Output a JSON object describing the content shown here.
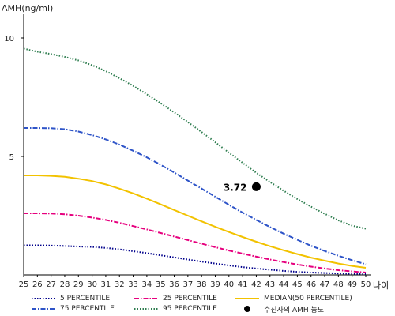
{
  "chart_data": {
    "type": "line",
    "ylabel": "AMH(ng/ml)",
    "xlabel": "나이",
    "x": [
      25,
      26,
      27,
      28,
      29,
      30,
      31,
      32,
      33,
      34,
      35,
      36,
      37,
      38,
      39,
      40,
      41,
      42,
      43,
      44,
      45,
      46,
      47,
      48,
      49,
      50
    ],
    "ylim": [
      0,
      11
    ],
    "xlim": [
      25,
      50
    ],
    "yticks": [
      5,
      10
    ],
    "grid": false,
    "legend_placement": "bottom",
    "series": [
      {
        "name": "5 PERCENTILE",
        "color": "#00008b",
        "style": "dotted",
        "values": [
          1.25,
          1.25,
          1.24,
          1.22,
          1.2,
          1.18,
          1.14,
          1.08,
          1.0,
          0.92,
          0.83,
          0.74,
          0.65,
          0.56,
          0.48,
          0.4,
          0.33,
          0.27,
          0.22,
          0.17,
          0.13,
          0.1,
          0.08,
          0.06,
          0.05,
          0.04
        ]
      },
      {
        "name": "25 PERCENTILE",
        "color": "#e6007e",
        "style": "dashdot",
        "values": [
          2.6,
          2.6,
          2.59,
          2.56,
          2.5,
          2.42,
          2.32,
          2.2,
          2.06,
          1.92,
          1.77,
          1.62,
          1.47,
          1.32,
          1.17,
          1.03,
          0.9,
          0.77,
          0.65,
          0.54,
          0.44,
          0.35,
          0.27,
          0.2,
          0.15,
          0.1
        ]
      },
      {
        "name": "MEDIAN(50 PERCENTILE)",
        "color": "#f2c200",
        "style": "solid",
        "values": [
          4.2,
          4.2,
          4.18,
          4.14,
          4.06,
          3.96,
          3.82,
          3.64,
          3.44,
          3.22,
          2.98,
          2.74,
          2.5,
          2.26,
          2.03,
          1.81,
          1.6,
          1.4,
          1.21,
          1.04,
          0.88,
          0.73,
          0.6,
          0.48,
          0.38,
          0.3
        ]
      },
      {
        "name": "75 PERCENTILE",
        "color": "#2e54c8",
        "style": "dashdot",
        "values": [
          6.2,
          6.2,
          6.19,
          6.15,
          6.05,
          5.9,
          5.72,
          5.5,
          5.24,
          4.96,
          4.65,
          4.32,
          3.98,
          3.64,
          3.3,
          2.96,
          2.63,
          2.32,
          2.02,
          1.74,
          1.48,
          1.23,
          1.01,
          0.81,
          0.62,
          0.45
        ]
      },
      {
        "name": "95 PERCENTILE",
        "color": "#2e7d4f",
        "style": "dotted",
        "values": [
          9.55,
          9.42,
          9.32,
          9.2,
          9.05,
          8.85,
          8.6,
          8.3,
          7.98,
          7.62,
          7.25,
          6.86,
          6.45,
          6.03,
          5.6,
          5.16,
          4.73,
          4.31,
          3.92,
          3.55,
          3.2,
          2.88,
          2.58,
          2.3,
          2.08,
          1.95
        ]
      }
    ],
    "points": [
      {
        "name": "수진자의 AMH 농도",
        "x": 42,
        "y": 3.72,
        "label": "3.72",
        "color": "#000000"
      }
    ],
    "xtick_labels": [
      "25",
      "26",
      "27",
      "28",
      "29",
      "30",
      "31",
      "32",
      "33",
      "34",
      "35",
      "36",
      "37",
      "38",
      "39",
      "40",
      "41",
      "42",
      "43",
      "44",
      "45",
      "46",
      "47",
      "48",
      "49",
      "50"
    ],
    "ytick_labels": [
      "5",
      "10"
    ]
  },
  "legend": {
    "items": [
      {
        "label": "5 PERCENTILE",
        "color": "#00008b",
        "style": "dotted"
      },
      {
        "label": "25 PERCENTILE",
        "color": "#e6007e",
        "style": "dashdot"
      },
      {
        "label": "MEDIAN(50 PERCENTILE)",
        "color": "#f2c200",
        "style": "solid"
      },
      {
        "label": "75 PERCENTILE",
        "color": "#2e54c8",
        "style": "dashdot"
      },
      {
        "label": "95 PERCENTILE",
        "color": "#2e7d4f",
        "style": "dotted"
      },
      {
        "label": "수진자의 AMH 농도",
        "color": "#000000",
        "style": "dot"
      }
    ]
  }
}
